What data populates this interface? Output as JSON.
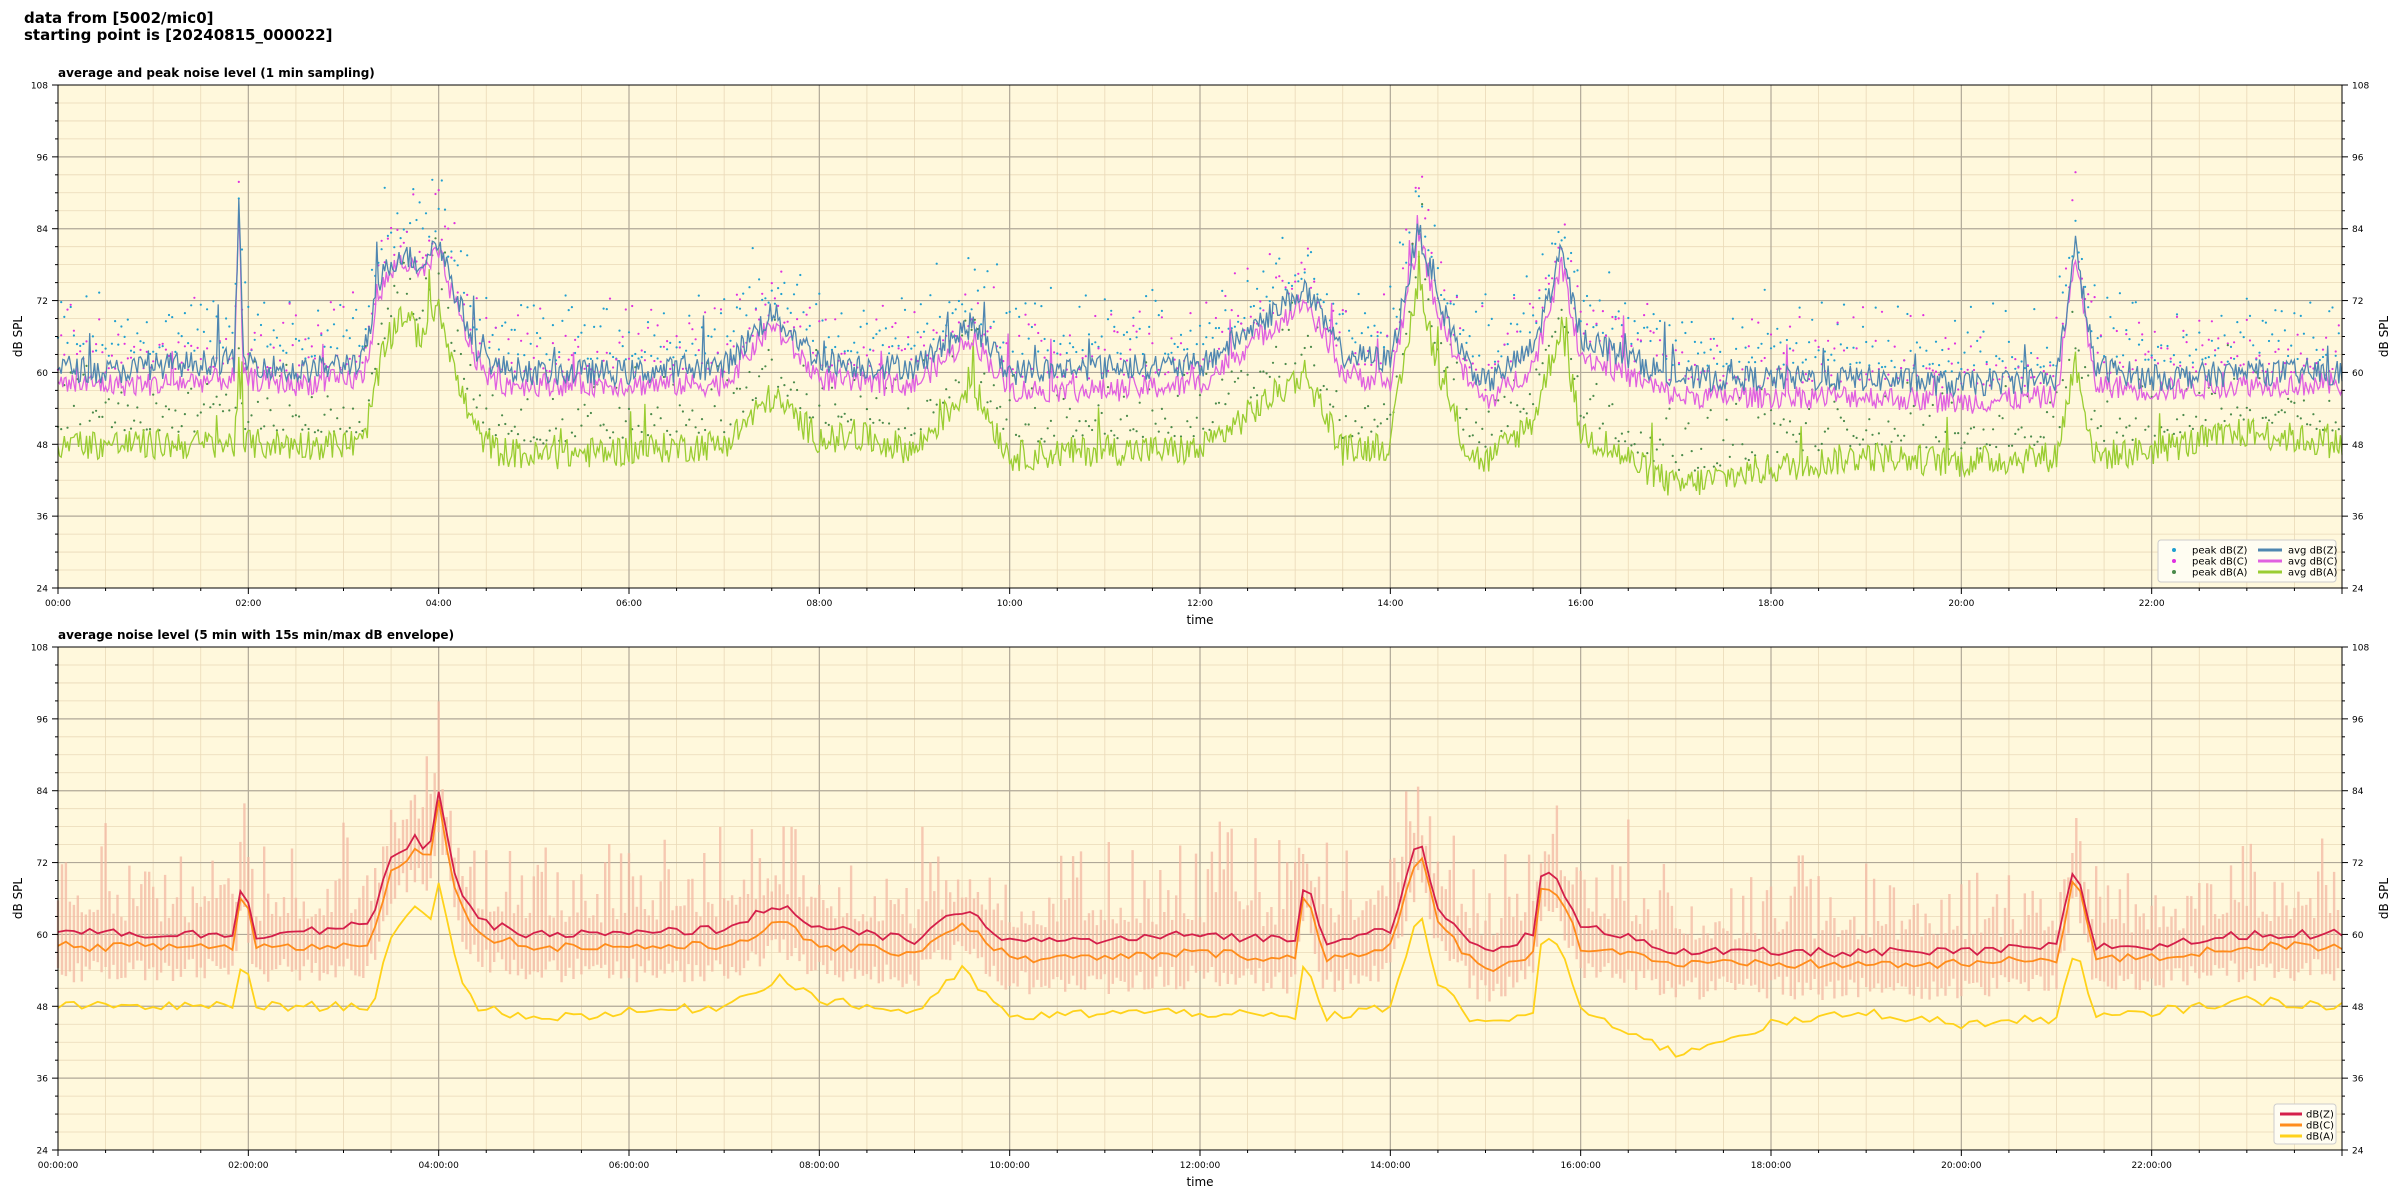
{
  "header": {
    "line1": "data from [5002/mic0]",
    "line2": "starting point is [20240815_000022]"
  },
  "chart_data": [
    {
      "type": "scatter",
      "title": "average and peak noise level (1 min sampling)",
      "xlabel": "time",
      "ylabel": "dB SPL",
      "ylabel_right": "dB SPL",
      "xlim_hours": [
        0,
        24
      ],
      "ylim": [
        24,
        108
      ],
      "yticks": [
        "108",
        "96",
        "84",
        "72",
        "60",
        "48",
        "36",
        "24"
      ],
      "xticks": [
        "00:00",
        "02:00",
        "04:00",
        "06:00",
        "08:00",
        "10:00",
        "12:00",
        "14:00",
        "16:00",
        "18:00",
        "20:00",
        "22:00"
      ],
      "grid": true,
      "legend_position": "lower-right",
      "legend": [
        [
          "peak dB(Z)",
          "peak dB(C)",
          "peak dB(A)"
        ],
        [
          "avg dB(Z)",
          "avg dB(C)",
          "avg dB(A)"
        ]
      ],
      "colors": {
        "Z": "#4f86b0",
        "C": "#e060e0",
        "A": "#9acd32",
        "peakZ": "#1f9fd0",
        "peakC": "#e030e0",
        "peakA": "#4a8a4a"
      },
      "series_keypoints": {
        "avg_Z": {
          "x": [
            0,
            0.5,
            1,
            1.85,
            1.9,
            1.95,
            2.5,
            3.2,
            3.4,
            3.6,
            3.8,
            4.0,
            4.2,
            4.4,
            4.6,
            5,
            6,
            7,
            7.5,
            8,
            8.5,
            9,
            9.6,
            10,
            11,
            12,
            13.1,
            13.5,
            14,
            14.3,
            14.5,
            14.8,
            15,
            15.5,
            15.8,
            16,
            17,
            18,
            19,
            20,
            21,
            21.2,
            21.4,
            22,
            23,
            24
          ],
          "y": [
            61,
            60,
            61,
            62,
            87,
            62,
            60,
            62,
            76,
            80,
            78,
            82,
            72,
            64,
            61,
            60,
            60,
            61,
            70,
            62,
            61,
            61,
            68,
            60,
            61,
            61,
            74,
            63,
            62,
            84,
            72,
            62,
            58,
            64,
            80,
            66,
            59,
            59,
            59,
            58,
            59,
            81,
            61,
            59,
            60,
            60
          ]
        },
        "avg_C": {
          "x": [
            0,
            0.5,
            1,
            1.85,
            1.9,
            1.95,
            2.5,
            3.2,
            3.4,
            3.6,
            3.8,
            4.0,
            4.2,
            4.4,
            4.6,
            5,
            6,
            7,
            7.5,
            8,
            8.5,
            9,
            9.6,
            10,
            11,
            12,
            13.1,
            13.5,
            14,
            14.3,
            14.5,
            14.8,
            15,
            15.5,
            15.8,
            16,
            17,
            18,
            19,
            20,
            21,
            21.2,
            21.4,
            22,
            23,
            24
          ],
          "y": [
            58,
            58,
            58,
            59,
            86,
            59,
            58,
            59,
            74,
            79,
            76,
            80,
            70,
            62,
            58,
            58,
            58,
            58,
            68,
            59,
            58,
            58,
            66,
            57,
            57,
            58,
            72,
            60,
            58,
            83,
            70,
            59,
            55,
            61,
            78,
            63,
            56,
            56,
            56,
            55,
            56,
            80,
            58,
            57,
            58,
            58
          ]
        },
        "avg_A": {
          "x": [
            0,
            0.5,
            1,
            1.85,
            1.9,
            1.95,
            2.5,
            3.2,
            3.4,
            3.6,
            3.8,
            4.0,
            4.2,
            4.4,
            4.6,
            5,
            6,
            7,
            7.5,
            8,
            8.5,
            9,
            9.6,
            10,
            11,
            12,
            13.1,
            13.5,
            14,
            14.3,
            14.5,
            14.8,
            15,
            15.5,
            15.8,
            16,
            17,
            18,
            19,
            20,
            21,
            21.2,
            21.4,
            22,
            23,
            24
          ],
          "y": [
            48,
            48,
            48,
            48,
            60,
            48,
            48,
            48,
            62,
            70,
            66,
            72,
            58,
            50,
            47,
            46,
            47,
            48,
            56,
            49,
            49,
            47,
            58,
            46,
            47,
            47,
            60,
            47,
            48,
            76,
            60,
            47,
            45,
            52,
            68,
            50,
            41,
            44,
            46,
            45,
            46,
            62,
            46,
            47,
            50,
            48
          ]
        }
      }
    },
    {
      "type": "line",
      "title": "average noise level (5 min with 15s min/max dB envelope)",
      "xlabel": "time",
      "ylabel": "dB SPL",
      "ylabel_right": "dB SPL",
      "xlim_hours": [
        0,
        24
      ],
      "ylim": [
        24,
        108
      ],
      "yticks": [
        "108",
        "96",
        "84",
        "72",
        "60",
        "48",
        "36",
        "24"
      ],
      "xticks": [
        "00:00:00",
        "02:00:00",
        "04:00:00",
        "06:00:00",
        "08:00:00",
        "10:00:00",
        "12:00:00",
        "14:00:00",
        "16:00:00",
        "18:00:00",
        "20:00:00",
        "22:00:00"
      ],
      "grid": true,
      "legend_position": "lower-right",
      "legend": [
        "dB(Z)",
        "dB(C)",
        "dB(A)"
      ],
      "colors": {
        "Z": "#d41f4a",
        "C": "#ff8c1a",
        "A": "#ffd21a",
        "envelope": "#f3b9a3"
      },
      "series_keypoints": {
        "Z": {
          "x": [
            0,
            1,
            1.85,
            1.95,
            2.05,
            3,
            3.3,
            3.5,
            3.75,
            3.9,
            4.0,
            4.2,
            4.4,
            5,
            6,
            7,
            7.6,
            8,
            9,
            9.5,
            10,
            11,
            12,
            13,
            13.1,
            13.3,
            14,
            14.3,
            14.5,
            14.9,
            15,
            15.5,
            15.6,
            15.8,
            16,
            16.5,
            17,
            18,
            19,
            20,
            21,
            21.2,
            21.4,
            22,
            23,
            24
          ],
          "y": [
            61,
            60,
            60,
            71,
            60,
            61,
            62,
            73,
            76,
            74,
            84,
            68,
            62,
            60,
            60,
            61,
            65,
            61,
            59,
            64,
            59,
            59,
            60,
            59,
            70,
            59,
            61,
            76,
            64,
            58,
            57,
            60,
            71,
            68,
            61,
            60,
            57,
            57,
            57,
            57,
            58,
            72,
            58,
            58,
            60,
            60
          ]
        },
        "C": {
          "x": [
            0,
            1,
            1.85,
            1.95,
            2.05,
            3,
            3.3,
            3.5,
            3.75,
            3.9,
            4.0,
            4.2,
            4.4,
            5,
            6,
            7,
            7.6,
            8,
            9,
            9.5,
            10,
            11,
            12,
            13,
            13.1,
            13.3,
            14,
            14.3,
            14.5,
            14.9,
            15,
            15.5,
            15.6,
            15.8,
            16,
            16.5,
            17,
            18,
            19,
            20,
            21,
            21.2,
            21.4,
            22,
            23,
            24
          ],
          "y": [
            58,
            58,
            58,
            70,
            58,
            58,
            59,
            71,
            74,
            72,
            82,
            66,
            60,
            58,
            58,
            58,
            62,
            58,
            57,
            62,
            56,
            56,
            57,
            56,
            68,
            56,
            58,
            74,
            62,
            55,
            54,
            57,
            69,
            66,
            58,
            57,
            55,
            55,
            55,
            55,
            56,
            71,
            56,
            56,
            58,
            58
          ]
        },
        "A": {
          "x": [
            0,
            1,
            1.85,
            1.95,
            2.05,
            3,
            3.3,
            3.5,
            3.75,
            3.9,
            4.0,
            4.2,
            4.4,
            5,
            6,
            7,
            7.6,
            8,
            9,
            9.5,
            10,
            11,
            12,
            13,
            13.1,
            13.3,
            14,
            14.3,
            14.5,
            14.9,
            15,
            15.5,
            15.6,
            15.8,
            16,
            16.5,
            17,
            18,
            19,
            20,
            21,
            21.2,
            21.4,
            22,
            23,
            24
          ],
          "y": [
            48,
            48,
            48,
            58,
            48,
            48,
            48,
            60,
            64,
            62,
            68,
            54,
            48,
            46,
            47,
            48,
            53,
            49,
            47,
            54,
            46,
            47,
            47,
            46,
            56,
            46,
            48,
            64,
            52,
            45,
            45,
            47,
            60,
            58,
            47,
            44,
            40,
            45,
            47,
            45,
            46,
            58,
            46,
            47,
            49,
            48
          ]
        }
      }
    }
  ]
}
